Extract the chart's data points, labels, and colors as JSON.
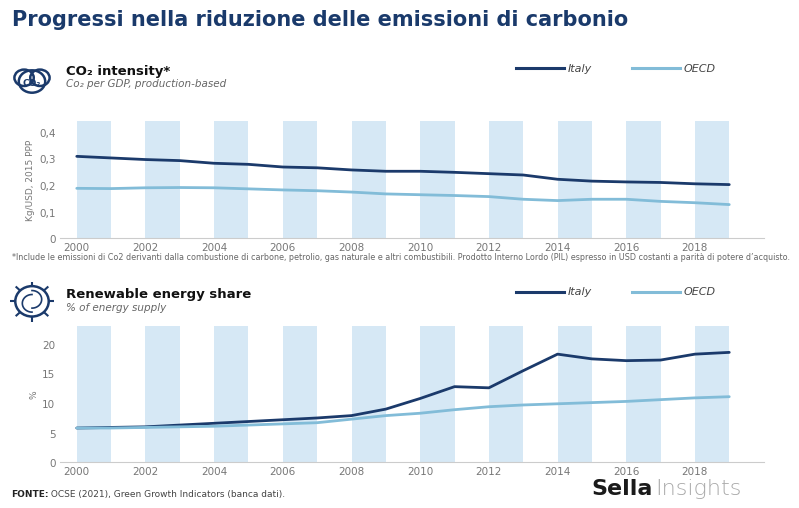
{
  "title": "Progressi nella riduzione delle emissioni di carbonio",
  "title_color": "#1a3a6b",
  "background_color": "#ffffff",
  "stripe_color": "#d6e8f5",
  "chart1": {
    "label": "CO₂ intensity*",
    "sublabel": "Co₂ per GDP, production-based",
    "ylabel": "Kg/USD, 2015 PPP",
    "years": [
      2000,
      2001,
      2002,
      2003,
      2004,
      2005,
      2006,
      2007,
      2008,
      2009,
      2010,
      2011,
      2012,
      2013,
      2014,
      2015,
      2016,
      2017,
      2018,
      2019
    ],
    "italy": [
      0.308,
      0.302,
      0.296,
      0.292,
      0.282,
      0.278,
      0.268,
      0.265,
      0.257,
      0.252,
      0.252,
      0.248,
      0.243,
      0.238,
      0.222,
      0.215,
      0.212,
      0.21,
      0.205,
      0.202
    ],
    "oecd": [
      0.188,
      0.187,
      0.19,
      0.191,
      0.19,
      0.186,
      0.182,
      0.179,
      0.174,
      0.167,
      0.164,
      0.161,
      0.157,
      0.147,
      0.142,
      0.147,
      0.147,
      0.139,
      0.134,
      0.127
    ],
    "ylim": [
      0,
      0.44
    ],
    "yticks": [
      0,
      0.1,
      0.2,
      0.3,
      0.4
    ],
    "ytick_labels": [
      "0",
      "0,1",
      "0,2",
      "0,3",
      "0,4"
    ],
    "footnote": "*Include le emissioni di Co2 derivanti dalla combustione di carbone, petrolio, gas naturale e altri combustibili. Prodotto Interno Lordo (PIL) espresso in USD costanti a parità di potere d’acquisto."
  },
  "chart2": {
    "label": "Renewable energy share",
    "sublabel": "% of energy supply",
    "ylabel": "%",
    "years": [
      2000,
      2001,
      2002,
      2003,
      2004,
      2005,
      2006,
      2007,
      2008,
      2009,
      2010,
      2011,
      2012,
      2013,
      2014,
      2015,
      2016,
      2017,
      2018,
      2019
    ],
    "italy": [
      5.8,
      5.9,
      6.0,
      6.3,
      6.6,
      6.9,
      7.2,
      7.5,
      7.9,
      9.0,
      10.8,
      12.8,
      12.6,
      15.5,
      18.3,
      17.5,
      17.2,
      17.3,
      18.3,
      18.6
    ],
    "oecd": [
      5.8,
      5.8,
      5.9,
      6.0,
      6.1,
      6.3,
      6.5,
      6.7,
      7.3,
      7.9,
      8.3,
      8.9,
      9.4,
      9.7,
      9.9,
      10.1,
      10.3,
      10.6,
      10.9,
      11.1
    ],
    "ylim": [
      0,
      23
    ],
    "yticks": [
      0,
      5,
      10,
      15,
      20
    ],
    "ytick_labels": [
      "0",
      "5",
      "10",
      "15",
      "20"
    ]
  },
  "italy_color": "#1b3a6b",
  "oecd_color": "#82bcd8",
  "line_width": 2.0,
  "xtick_years": [
    2000,
    2002,
    2004,
    2006,
    2008,
    2010,
    2012,
    2014,
    2016,
    2018
  ],
  "fonte_label": "FONTE:",
  "fonte_text": " OCSE (2021), Green Growth Indicators (banca dati).",
  "sella_bold": "Sella",
  "sella_light": "Insights"
}
